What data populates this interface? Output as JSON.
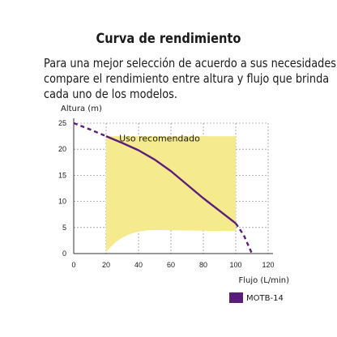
{
  "header": {
    "title": "Curva de rendimiento",
    "description_lines": [
      "Para una mejor selección de acuerdo a sus necesidades",
      "compare el rendimiento entre altura y flujo que brinda",
      "cada uno de los modelos."
    ]
  },
  "colors": {
    "curve": "#5b1d7a",
    "region": "#f5ea8e",
    "grid": "#9a9a9a",
    "axis": "#333333"
  },
  "chart_data": {
    "type": "line",
    "xlabel": "Flujo (L/min)",
    "ylabel": "Altura (m)",
    "xlim": [
      0,
      120
    ],
    "ylim": [
      0,
      25
    ],
    "xticks": [
      0,
      20,
      40,
      60,
      80,
      100,
      120
    ],
    "yticks": [
      0,
      5,
      10,
      15,
      20,
      25
    ],
    "grid": "dashed",
    "series": [
      {
        "name": "MOTB-14",
        "x": [
          20,
          30,
          40,
          50,
          60,
          70,
          80,
          90,
          100
        ],
        "y": [
          22.5,
          21.2,
          19.8,
          18.0,
          15.8,
          13.2,
          10.6,
          8.2,
          5.8
        ],
        "extrapolated_low": {
          "x": [
            0,
            10,
            20
          ],
          "y": [
            25,
            23.8,
            22.5
          ]
        },
        "extrapolated_high": {
          "x": [
            100,
            105,
            110
          ],
          "y": [
            5.8,
            3.5,
            0
          ]
        }
      }
    ],
    "annotations": [
      {
        "text": "Uso recomendado",
        "x": 55,
        "y": 21.5
      }
    ],
    "recommended_region": {
      "x": [
        20,
        100
      ],
      "y_top": 22.5,
      "lower_boundary": {
        "x": [
          20,
          30,
          40,
          50,
          100
        ],
        "y": [
          0.2,
          3.0,
          4.2,
          4.5,
          4.3
        ]
      }
    },
    "legend": {
      "position": "bottom-right",
      "entries": [
        "MOTB-14"
      ]
    }
  }
}
